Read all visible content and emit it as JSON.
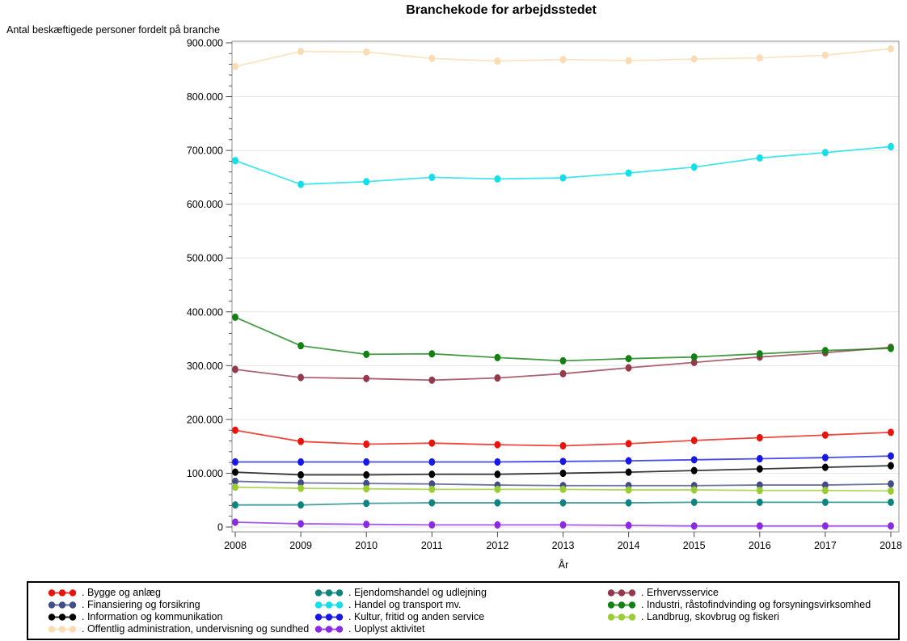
{
  "title": "Branchekode for arbejdsstedet",
  "chart_data": {
    "type": "line",
    "title": "Branchekode for arbejdsstedet",
    "ylabel": "Antal beskæftigede personer fordelt på branche",
    "xlabel": "År",
    "x": [
      2008,
      2009,
      2010,
      2011,
      2012,
      2013,
      2014,
      2015,
      2016,
      2017,
      2018
    ],
    "ylim": [
      0,
      900000
    ],
    "y_tick_interval": 100000,
    "y_minor_tick_interval": 20000,
    "y_tick_labels": [
      "0",
      "100.000",
      "200.000",
      "300.000",
      "400.000",
      "500.000",
      "600.000",
      "700.000",
      "800.000",
      "900.000"
    ],
    "grid": "horizontal",
    "legend_position": "bottom",
    "legend_label_prefix": ". ",
    "series": [
      {
        "name": "Bygge og anlæg",
        "color": "#e8140c",
        "values": [
          180000,
          159000,
          154000,
          156000,
          153000,
          151000,
          155000,
          161000,
          166000,
          171000,
          176000
        ]
      },
      {
        "name": "Ejendomshandel og udlejning",
        "color": "#0e8481",
        "values": [
          41000,
          41000,
          44000,
          45000,
          45000,
          45000,
          45000,
          46000,
          46000,
          46000,
          46000
        ]
      },
      {
        "name": "Erhvervsservice",
        "color": "#94394b",
        "values": [
          293000,
          278000,
          276000,
          273000,
          277000,
          285000,
          296000,
          306000,
          316000,
          324000,
          334000
        ]
      },
      {
        "name": "Finansiering og forsikring",
        "color": "#424d87",
        "values": [
          85000,
          82000,
          81000,
          80000,
          78000,
          77000,
          77000,
          77000,
          78000,
          78000,
          80000
        ]
      },
      {
        "name": "Handel og transport mv.",
        "color": "#12dfe8",
        "values": [
          681000,
          637000,
          642000,
          650000,
          647000,
          649000,
          658000,
          669000,
          686000,
          696000,
          707000
        ]
      },
      {
        "name": "Industri, råstofindvinding og forsyningsvirksomhed",
        "color": "#128012",
        "values": [
          390000,
          337000,
          321000,
          322000,
          315000,
          309000,
          313000,
          316000,
          322000,
          328000,
          332000
        ]
      },
      {
        "name": "Information og kommunikation",
        "color": "#000000",
        "values": [
          102000,
          97000,
          97000,
          98000,
          98000,
          100000,
          102000,
          105000,
          108000,
          111000,
          114000
        ]
      },
      {
        "name": "Kultur, fritid og anden service",
        "color": "#1717e6",
        "values": [
          121000,
          121000,
          121000,
          121000,
          121000,
          122000,
          123000,
          125000,
          127000,
          129000,
          132000
        ]
      },
      {
        "name": "Landbrug, skovbrug og fiskeri",
        "color": "#9acd32",
        "values": [
          74000,
          72000,
          71000,
          70000,
          70000,
          70000,
          69000,
          69000,
          68000,
          68000,
          67000
        ]
      },
      {
        "name": "Offentlig administration, undervisning og sundhed",
        "color": "#fadcb4",
        "values": [
          856000,
          884000,
          883000,
          871000,
          866000,
          869000,
          867000,
          870000,
          872000,
          877000,
          889000
        ]
      },
      {
        "name": "Uoplyst aktivitet",
        "color": "#8a2be2",
        "values": [
          9000,
          6000,
          5000,
          4000,
          4000,
          4000,
          3000,
          2000,
          2000,
          2000,
          2000
        ]
      }
    ]
  }
}
